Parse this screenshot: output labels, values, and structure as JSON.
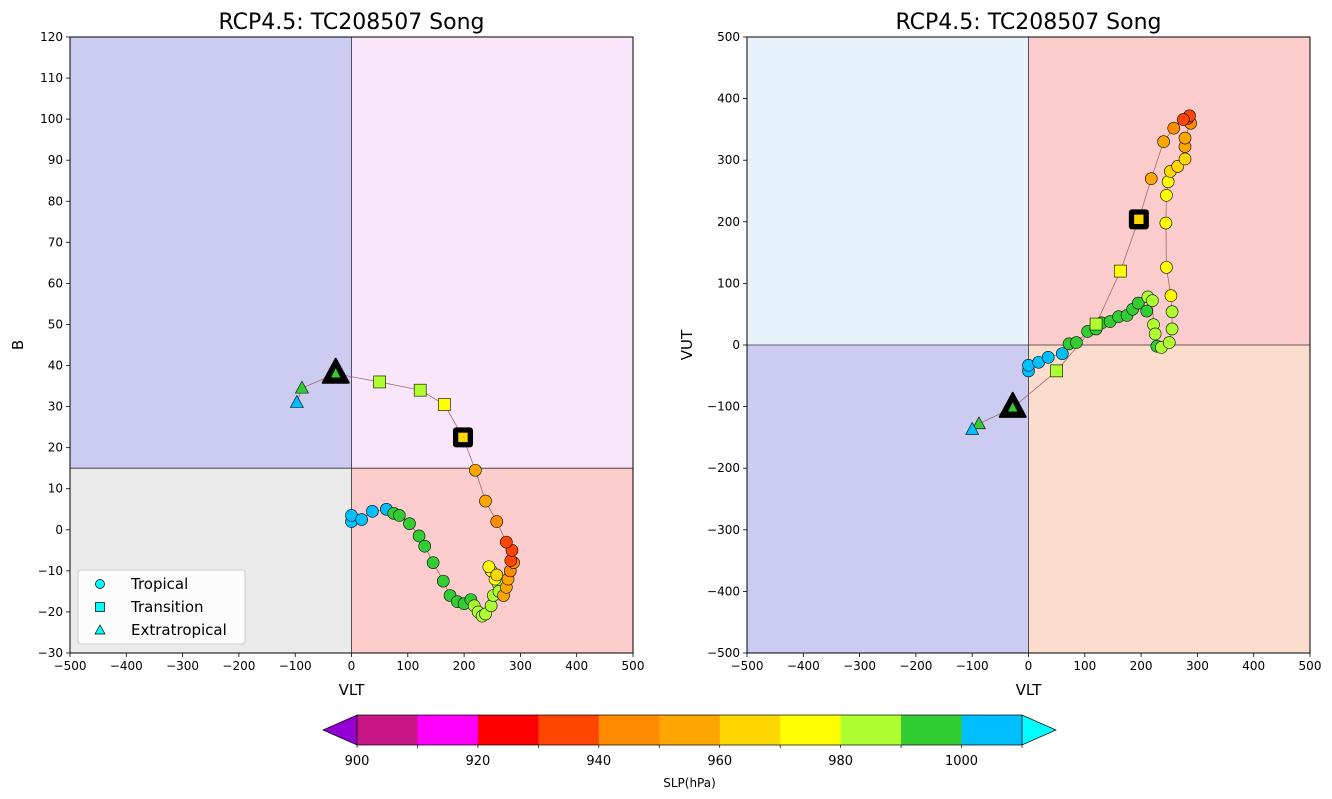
{
  "chart_data": [
    {
      "type": "scatter",
      "title": "RCP4.5: TC208507 Song",
      "xlabel": "VLT",
      "ylabel": "B",
      "xlim": [
        -500,
        500
      ],
      "ylim": [
        -30,
        120
      ],
      "x_ticks": [
        "−500",
        "−400",
        "−300",
        "−200",
        "−100",
        "0",
        "100",
        "200",
        "300",
        "400",
        "500"
      ],
      "y_ticks": [
        "−30",
        "−20",
        "−10",
        "0",
        "10",
        "20",
        "30",
        "40",
        "50",
        "60",
        "70",
        "80",
        "90",
        "100",
        "110",
        "120"
      ],
      "quadrants": [
        {
          "x": [
            -500,
            0
          ],
          "y": [
            15,
            120
          ],
          "color": "#ccccf3"
        },
        {
          "x": [
            0,
            500
          ],
          "y": [
            15,
            120
          ],
          "color": "#fae6fa"
        },
        {
          "x": [
            -500,
            0
          ],
          "y": [
            -30,
            15
          ],
          "color": "#ebebeb"
        },
        {
          "x": [
            0,
            500
          ],
          "y": [
            -30,
            15
          ],
          "color": "#fdcccc"
        }
      ],
      "legend": {
        "placement": "lower-left",
        "entries": [
          {
            "label": "Tropical",
            "marker": "circle"
          },
          {
            "label": "Transition",
            "marker": "square"
          },
          {
            "label": "Extratropical",
            "marker": "triangle"
          }
        ]
      },
      "track": [
        {
          "x": 0,
          "y": 2,
          "slp": 1003,
          "phase": "tropical"
        },
        {
          "x": 0,
          "y": 3.5,
          "slp": 1003,
          "phase": "tropical"
        },
        {
          "x": 18,
          "y": 2.5,
          "slp": 1002,
          "phase": "tropical"
        },
        {
          "x": 37,
          "y": 4.5,
          "slp": 1001,
          "phase": "tropical"
        },
        {
          "x": 62,
          "y": 5,
          "slp": 1001,
          "phase": "tropical"
        },
        {
          "x": 75,
          "y": 4,
          "slp": 995,
          "phase": "tropical"
        },
        {
          "x": 85,
          "y": 3.5,
          "slp": 994,
          "phase": "tropical"
        },
        {
          "x": 103,
          "y": 1.5,
          "slp": 993,
          "phase": "tropical"
        },
        {
          "x": 120,
          "y": -1.5,
          "slp": 993,
          "phase": "tropical"
        },
        {
          "x": 130,
          "y": -4,
          "slp": 992,
          "phase": "tropical"
        },
        {
          "x": 145,
          "y": -8,
          "slp": 992,
          "phase": "tropical"
        },
        {
          "x": 163,
          "y": -12.5,
          "slp": 991,
          "phase": "tropical"
        },
        {
          "x": 175,
          "y": -16,
          "slp": 991,
          "phase": "tropical"
        },
        {
          "x": 188,
          "y": -17.5,
          "slp": 990,
          "phase": "tropical"
        },
        {
          "x": 200,
          "y": -18,
          "slp": 990,
          "phase": "tropical"
        },
        {
          "x": 212,
          "y": -17,
          "slp": 990,
          "phase": "tropical"
        },
        {
          "x": 218,
          "y": -18.5,
          "slp": 988,
          "phase": "tropical"
        },
        {
          "x": 225,
          "y": -20,
          "slp": 988,
          "phase": "tropical"
        },
        {
          "x": 232,
          "y": -21,
          "slp": 988,
          "phase": "tropical"
        },
        {
          "x": 238,
          "y": -20.5,
          "slp": 987,
          "phase": "tropical"
        },
        {
          "x": 248,
          "y": -18.5,
          "slp": 986,
          "phase": "tropical"
        },
        {
          "x": 252,
          "y": -16,
          "slp": 985,
          "phase": "tropical"
        },
        {
          "x": 260,
          "y": -13,
          "slp": 984,
          "phase": "tropical"
        },
        {
          "x": 262,
          "y": -15,
          "slp": 982,
          "phase": "tropical"
        },
        {
          "x": 255,
          "y": -12,
          "slp": 975,
          "phase": "tropical"
        },
        {
          "x": 248,
          "y": -10,
          "slp": 974,
          "phase": "tropical"
        },
        {
          "x": 244,
          "y": -9,
          "slp": 973,
          "phase": "tropical"
        },
        {
          "x": 258,
          "y": -11,
          "slp": 966,
          "phase": "tropical"
        },
        {
          "x": 270,
          "y": -16,
          "slp": 958,
          "phase": "tropical"
        },
        {
          "x": 275,
          "y": -14,
          "slp": 955,
          "phase": "tropical"
        },
        {
          "x": 278,
          "y": -12,
          "slp": 952,
          "phase": "tropical"
        },
        {
          "x": 282,
          "y": -10,
          "slp": 946,
          "phase": "tropical"
        },
        {
          "x": 288,
          "y": -8,
          "slp": 944,
          "phase": "tropical"
        },
        {
          "x": 283,
          "y": -7.5,
          "slp": 938,
          "phase": "tropical"
        },
        {
          "x": 285,
          "y": -5,
          "slp": 934,
          "phase": "tropical"
        },
        {
          "x": 275,
          "y": -3,
          "slp": 935,
          "phase": "tropical"
        },
        {
          "x": 258,
          "y": 2,
          "slp": 948,
          "phase": "tropical"
        },
        {
          "x": 238,
          "y": 7,
          "slp": 950,
          "phase": "tropical"
        },
        {
          "x": 220,
          "y": 14.5,
          "slp": 954,
          "phase": "tropical"
        },
        {
          "x": 198,
          "y": 22.5,
          "slp": 965,
          "phase": "transition",
          "mark": "transition-start"
        },
        {
          "x": 165,
          "y": 30.5,
          "slp": 974,
          "phase": "transition"
        },
        {
          "x": 122,
          "y": 34,
          "slp": 982,
          "phase": "transition"
        },
        {
          "x": 50,
          "y": 36,
          "slp": 984,
          "phase": "transition"
        },
        {
          "x": -28,
          "y": 38,
          "slp": 995,
          "phase": "extratropical",
          "mark": "transition-end"
        },
        {
          "x": -88,
          "y": 34.5,
          "slp": 996,
          "phase": "extratropical"
        },
        {
          "x": -97,
          "y": 31,
          "slp": 1002,
          "phase": "extratropical"
        }
      ]
    },
    {
      "type": "scatter",
      "title": "RCP4.5: TC208507 Song",
      "xlabel": "VLT",
      "ylabel": "VUT",
      "xlim": [
        -500,
        500
      ],
      "ylim": [
        -500,
        500
      ],
      "x_ticks": [
        "−500",
        "−400",
        "−300",
        "−200",
        "−100",
        "0",
        "100",
        "200",
        "300",
        "400",
        "500"
      ],
      "y_ticks": [
        "−500",
        "−400",
        "−300",
        "−200",
        "−100",
        "0",
        "100",
        "200",
        "300",
        "400",
        "500"
      ],
      "quadrants": [
        {
          "x": [
            -500,
            0
          ],
          "y": [
            0,
            500
          ],
          "color": "#e6f3fc"
        },
        {
          "x": [
            0,
            500
          ],
          "y": [
            0,
            500
          ],
          "color": "#fdcccc"
        },
        {
          "x": [
            -500,
            0
          ],
          "y": [
            -500,
            0
          ],
          "color": "#ccccf3"
        },
        {
          "x": [
            0,
            500
          ],
          "y": [
            -500,
            0
          ],
          "color": "#fcdccd"
        }
      ],
      "track": [
        {
          "x": 0,
          "y": -42,
          "slp": 1003,
          "phase": "tropical"
        },
        {
          "x": 0,
          "y": -33,
          "slp": 1003,
          "phase": "tropical"
        },
        {
          "x": 18,
          "y": -28,
          "slp": 1002,
          "phase": "tropical"
        },
        {
          "x": 35,
          "y": -20,
          "slp": 1001,
          "phase": "tropical"
        },
        {
          "x": 60,
          "y": -14,
          "slp": 1001,
          "phase": "tropical"
        },
        {
          "x": 72,
          "y": 2,
          "slp": 995,
          "phase": "tropical"
        },
        {
          "x": 85,
          "y": 4,
          "slp": 994,
          "phase": "tropical"
        },
        {
          "x": 105,
          "y": 22,
          "slp": 993,
          "phase": "tropical"
        },
        {
          "x": 120,
          "y": 26,
          "slp": 993,
          "phase": "tropical"
        },
        {
          "x": 130,
          "y": 36,
          "slp": 992,
          "phase": "tropical"
        },
        {
          "x": 145,
          "y": 38,
          "slp": 992,
          "phase": "tropical"
        },
        {
          "x": 160,
          "y": 46,
          "slp": 991,
          "phase": "tropical"
        },
        {
          "x": 175,
          "y": 48,
          "slp": 991,
          "phase": "tropical"
        },
        {
          "x": 185,
          "y": 58,
          "slp": 990,
          "phase": "tropical"
        },
        {
          "x": 195,
          "y": 68,
          "slp": 990,
          "phase": "tropical"
        },
        {
          "x": 210,
          "y": 55,
          "slp": 990,
          "phase": "tropical"
        },
        {
          "x": 212,
          "y": 78,
          "slp": 988,
          "phase": "tropical"
        },
        {
          "x": 220,
          "y": 72,
          "slp": 987,
          "phase": "tropical"
        },
        {
          "x": 222,
          "y": 33,
          "slp": 988,
          "phase": "tropical"
        },
        {
          "x": 225,
          "y": 18,
          "slp": 986,
          "phase": "tropical"
        },
        {
          "x": 228,
          "y": -2,
          "slp": 990,
          "phase": "tropical"
        },
        {
          "x": 236,
          "y": -4,
          "slp": 989,
          "phase": "tropical"
        },
        {
          "x": 250,
          "y": 4,
          "slp": 984,
          "phase": "tropical"
        },
        {
          "x": 255,
          "y": 26,
          "slp": 983,
          "phase": "tropical"
        },
        {
          "x": 255,
          "y": 54,
          "slp": 982,
          "phase": "tropical"
        },
        {
          "x": 253,
          "y": 80,
          "slp": 975,
          "phase": "tropical"
        },
        {
          "x": 245,
          "y": 126,
          "slp": 974,
          "phase": "tropical"
        },
        {
          "x": 244,
          "y": 198,
          "slp": 973,
          "phase": "tropical"
        },
        {
          "x": 245,
          "y": 243,
          "slp": 972,
          "phase": "tropical"
        },
        {
          "x": 248,
          "y": 265,
          "slp": 971,
          "phase": "tropical"
        },
        {
          "x": 252,
          "y": 282,
          "slp": 966,
          "phase": "tropical"
        },
        {
          "x": 265,
          "y": 290,
          "slp": 962,
          "phase": "tropical"
        },
        {
          "x": 278,
          "y": 302,
          "slp": 960,
          "phase": "tropical"
        },
        {
          "x": 278,
          "y": 322,
          "slp": 958,
          "phase": "tropical"
        },
        {
          "x": 278,
          "y": 336,
          "slp": 954,
          "phase": "tropical"
        },
        {
          "x": 288,
          "y": 360,
          "slp": 944,
          "phase": "tropical"
        },
        {
          "x": 283,
          "y": 368,
          "slp": 938,
          "phase": "tropical"
        },
        {
          "x": 286,
          "y": 372,
          "slp": 934,
          "phase": "tropical"
        },
        {
          "x": 275,
          "y": 366,
          "slp": 935,
          "phase": "tropical"
        },
        {
          "x": 258,
          "y": 352,
          "slp": 948,
          "phase": "tropical"
        },
        {
          "x": 240,
          "y": 330,
          "slp": 950,
          "phase": "tropical"
        },
        {
          "x": 218,
          "y": 270,
          "slp": 954,
          "phase": "tropical"
        },
        {
          "x": 196,
          "y": 204,
          "slp": 965,
          "phase": "transition",
          "mark": "transition-start"
        },
        {
          "x": 163,
          "y": 120,
          "slp": 974,
          "phase": "transition"
        },
        {
          "x": 120,
          "y": 34,
          "slp": 982,
          "phase": "transition"
        },
        {
          "x": 50,
          "y": -42,
          "slp": 984,
          "phase": "transition"
        },
        {
          "x": -28,
          "y": -102,
          "slp": 995,
          "phase": "extratropical",
          "mark": "transition-end"
        },
        {
          "x": -88,
          "y": -128,
          "slp": 996,
          "phase": "extratropical"
        },
        {
          "x": -100,
          "y": -137,
          "slp": 1002,
          "phase": "extratropical"
        }
      ]
    }
  ],
  "colorbar": {
    "label": "SLP(hPa)",
    "tick_labels": [
      "900",
      "920",
      "940",
      "960",
      "980",
      "1000"
    ],
    "tick_values": [
      900,
      920,
      940,
      960,
      980,
      1000
    ],
    "under_color": "#9400d3",
    "over_color": "#00ffff",
    "bins": [
      {
        "from": 900,
        "to": 910,
        "color": "#c71585"
      },
      {
        "from": 910,
        "to": 920,
        "color": "#ff00ff"
      },
      {
        "from": 920,
        "to": 930,
        "color": "#ff0000"
      },
      {
        "from": 930,
        "to": 940,
        "color": "#ff4500"
      },
      {
        "from": 940,
        "to": 950,
        "color": "#ff8c00"
      },
      {
        "from": 950,
        "to": 960,
        "color": "#ffa500"
      },
      {
        "from": 960,
        "to": 970,
        "color": "#ffd700"
      },
      {
        "from": 970,
        "to": 980,
        "color": "#ffff00"
      },
      {
        "from": 980,
        "to": 990,
        "color": "#adff2f"
      },
      {
        "from": 990,
        "to": 1000,
        "color": "#32cd32"
      },
      {
        "from": 1000,
        "to": 1010,
        "color": "#00bfff"
      }
    ]
  }
}
